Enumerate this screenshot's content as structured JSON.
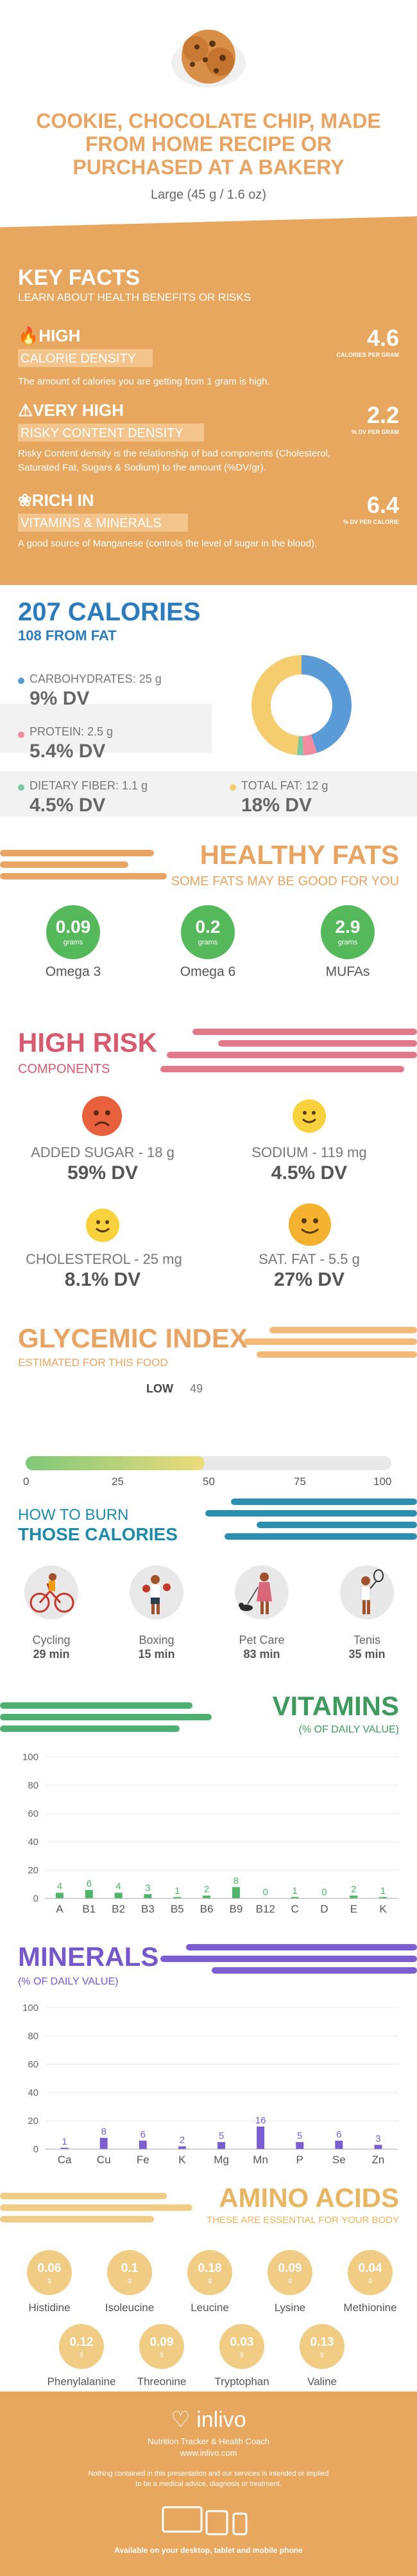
{
  "header": {
    "title": "COOKIE, CHOCOLATE CHIP, MADE FROM HOME RECIPE OR PURCHASED AT A BAKERY",
    "serving": "Large (45 g / 1.6 oz)"
  },
  "key_facts": {
    "title": "KEY FACTS",
    "subtitle": "LEARN ABOUT HEALTH BENEFITS OR RISKS",
    "facts": [
      {
        "level": "HIGH",
        "label": "CALORIE DENSITY",
        "desc": "The amount of calories you are getting from 1 gram is high.",
        "value": "4.6",
        "unit": "CALORIES PER GRAM",
        "icon": "flame-icon"
      },
      {
        "level": "VERY HIGH",
        "label": "RISKY CONTENT DENSITY",
        "desc": "Risky Content density is the relationship of bad components (Cholesterol, Saturated Fat, Sugars & Sodium) to the amount (%DV/gr).",
        "value": "2.2",
        "unit": "% DV PER GRAM",
        "icon": "warning-icon"
      },
      {
        "level": "RICH IN",
        "label": "VITAMINS & MINERALS",
        "desc": "A good source of Manganese (controls the level of sugar in the blood).",
        "value": "6.4",
        "unit": "% DV PER CALORIE",
        "icon": "leaf-icon"
      }
    ]
  },
  "calories": {
    "title": "207 CALORIES",
    "from_fat": "108 FROM FAT",
    "items": [
      {
        "label": "CARBOHYDRATES: 25 g",
        "dv": "9% DV",
        "color": "#5b9bd5"
      },
      {
        "label": "PROTEIN: 2.5 g",
        "dv": "5.4% DV",
        "color": "#f28ca0"
      },
      {
        "label": "DIETARY FIBER: 1.1 g",
        "dv": "4.5% DV",
        "color": "#7cc7a4"
      },
      {
        "label": "TOTAL FAT: 12 g",
        "dv": "18% DV",
        "color": "#f6cd6e"
      }
    ],
    "donut": [
      {
        "name": "carbohydrates",
        "value": 100,
        "color": "#5b9bd5"
      },
      {
        "name": "protein",
        "value": 10,
        "color": "#f28ca0"
      },
      {
        "name": "fiber",
        "value": 4.4,
        "color": "#7cc7a4"
      },
      {
        "name": "fat",
        "value": 108,
        "color": "#f6cd6e"
      }
    ]
  },
  "healthy_fats": {
    "title": "HEALTHY FATS",
    "subtitle": "SOME FATS MAY BE GOOD FOR YOU",
    "items": [
      {
        "value": "0.09",
        "unit": "grams",
        "label": "Omega 3"
      },
      {
        "value": "0.2",
        "unit": "grams",
        "label": "Omega 6"
      },
      {
        "value": "2.9",
        "unit": "grams",
        "label": "MUFAs"
      }
    ]
  },
  "high_risk": {
    "title": "HIGH RISK",
    "subtitle": "COMPONENTS",
    "items": [
      {
        "label": "ADDED SUGAR - 18 g",
        "dv": "59% DV",
        "face": "sad-face-icon",
        "color": "#e8603c"
      },
      {
        "label": "SODIUM - 119 mg",
        "dv": "4.5% DV",
        "face": "smile-face-icon",
        "color": "#f7d23c"
      },
      {
        "label": "CHOLESTEROL - 25 mg",
        "dv": "8.1% DV",
        "face": "smile-face-icon",
        "color": "#f7d23c"
      },
      {
        "label": "SAT. FAT - 5.5 g",
        "dv": "27% DV",
        "face": "smile-face-icon",
        "color": "#f5b130"
      }
    ]
  },
  "glycemic": {
    "title": "GLYCEMIC INDEX",
    "subtitle": "ESTIMATED FOR THIS FOOD",
    "level": "LOW",
    "value": "49",
    "value_num": 49,
    "ticks": [
      "0",
      "25",
      "50",
      "75",
      "100"
    ]
  },
  "burn": {
    "title_line1": "HOW TO BURN",
    "title_line2": "THOSE CALORIES",
    "activities": [
      {
        "label": "Cycling",
        "time": "29 min",
        "icon": "cycling-icon"
      },
      {
        "label": "Boxing",
        "time": "15 min",
        "icon": "boxing-icon"
      },
      {
        "label": "Pet Care",
        "time": "83 min",
        "icon": "dog-walking-icon"
      },
      {
        "label": "Tenis",
        "time": "35 min",
        "icon": "tennis-icon"
      }
    ]
  },
  "vitamins": {
    "title": "VITAMINS",
    "subtitle": "(% OF DAILY VALUE)"
  },
  "minerals": {
    "title": "MINERALS",
    "subtitle": "(% OF DAILY VALUE)"
  },
  "chart_data": [
    {
      "type": "bar",
      "title": "VITAMINS",
      "ylabel": "(% OF DAILY VALUE)",
      "categories": [
        "A",
        "B1",
        "B2",
        "B3",
        "B5",
        "B6",
        "B9",
        "B12",
        "C",
        "D",
        "E",
        "K"
      ],
      "values": [
        4,
        6,
        4,
        3,
        1,
        2,
        8,
        0,
        1,
        0,
        2,
        1
      ],
      "ylim": [
        0,
        100
      ],
      "yticks": [
        0,
        20,
        40,
        60,
        80,
        100
      ],
      "color": "#52b36b",
      "grid": true
    },
    {
      "type": "bar",
      "title": "MINERALS",
      "ylabel": "(% OF DAILY VALUE)",
      "categories": [
        "Ca",
        "Cu",
        "Fe",
        "K",
        "Mg",
        "Mn",
        "P",
        "Se",
        "Zn"
      ],
      "values": [
        1,
        8,
        6,
        2,
        5,
        16,
        5,
        6,
        3
      ],
      "ylim": [
        0,
        100
      ],
      "yticks": [
        0,
        20,
        40,
        60,
        80,
        100
      ],
      "color": "#7b5fd0",
      "grid": true
    }
  ],
  "amino": {
    "title": "AMINO ACIDS",
    "subtitle": "THESE ARE ESSENTIAL FOR YOUR BODY",
    "items": [
      {
        "value": "0.06",
        "unit": "g",
        "label": "Histidine"
      },
      {
        "value": "0.1",
        "unit": "g",
        "label": "Isoleucine"
      },
      {
        "value": "0.18",
        "unit": "g",
        "label": "Leucine"
      },
      {
        "value": "0.09",
        "unit": "g",
        "label": "Lysine"
      },
      {
        "value": "0.04",
        "unit": "g",
        "label": "Methionine"
      },
      {
        "value": "0.12",
        "unit": "g",
        "label": "Phenylalanine"
      },
      {
        "value": "0.09",
        "unit": "g",
        "label": "Threonine"
      },
      {
        "value": "0.03",
        "unit": "g",
        "label": "Tryptophan"
      },
      {
        "value": "0.13",
        "unit": "g",
        "label": "Valine"
      }
    ]
  },
  "footer": {
    "brand": "inlivo",
    "tagline": "Nutrition Tracker & Health Coach",
    "url": "www.inlivo.com",
    "disclaimer_line1": "Nothing contained in this presentation and our services is intended or implied",
    "disclaimer_line2": "to be a medical advice, diagnosis or treatment.",
    "available": "Available on your desktop, tablet and mobile phone"
  }
}
